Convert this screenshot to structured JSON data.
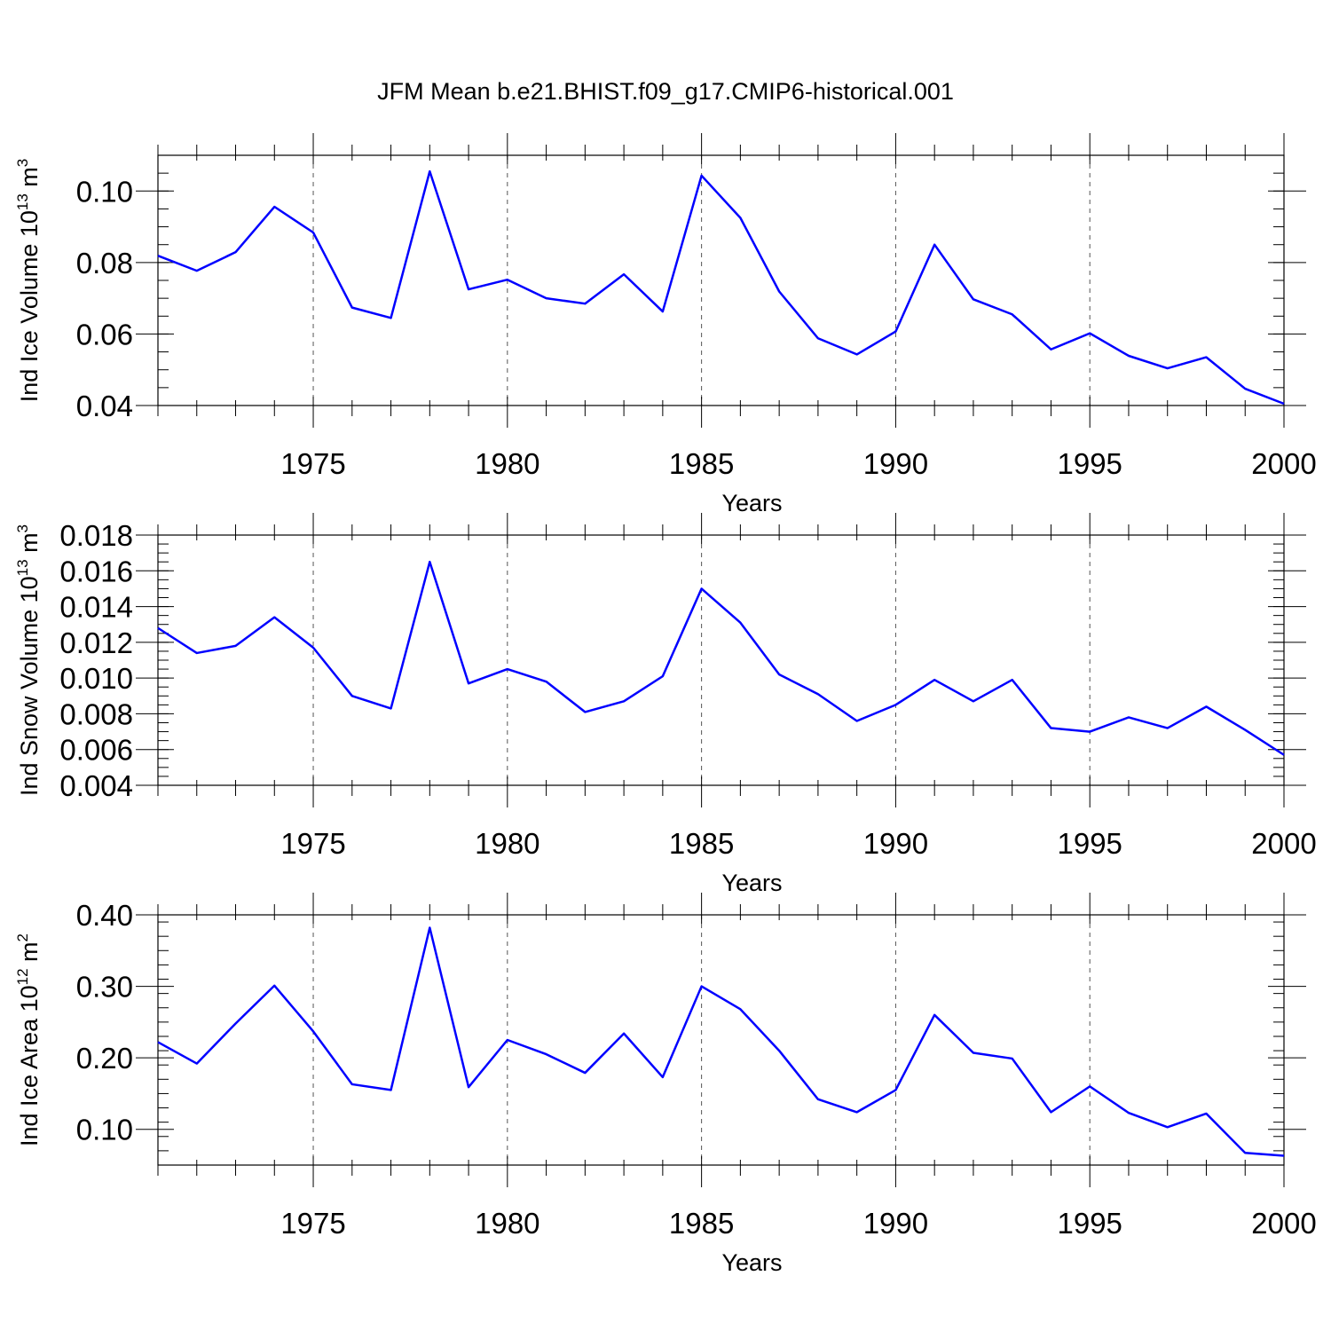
{
  "figure": {
    "title": "JFM Mean b.e21.BHIST.f09_g17.CMIP6-historical.001"
  },
  "style": {
    "line_color": "#0000ff",
    "axis_color": "#000000",
    "grid_color": "#555555",
    "background": "#ffffff"
  },
  "chart_data": [
    {
      "type": "line",
      "xlabel": "Years",
      "ylabel_parts": [
        "Ind Ice Volume 10",
        "13",
        " m",
        "3"
      ],
      "xlim": [
        1971,
        2000
      ],
      "ylim": [
        0.04,
        0.11
      ],
      "xticks": [
        1975,
        1980,
        1985,
        1990,
        1995,
        2000
      ],
      "xtick_labels": [
        "1975",
        "1980",
        "1985",
        "1990",
        "1995",
        "2000"
      ],
      "yticks": [
        0.04,
        0.06,
        0.08,
        0.1
      ],
      "ytick_labels": [
        "0.04",
        "0.06",
        "0.08",
        "0.10"
      ],
      "yminor_step": 0.005,
      "grid": "dashed vertical at major x ticks",
      "x": [
        1971,
        1972,
        1973,
        1974,
        1975,
        1976,
        1977,
        1978,
        1979,
        1980,
        1981,
        1982,
        1983,
        1984,
        1985,
        1986,
        1987,
        1988,
        1989,
        1990,
        1991,
        1992,
        1993,
        1994,
        1995,
        1996,
        1997,
        1998,
        1999,
        2000
      ],
      "series": [
        {
          "name": "Ind Ice Volume",
          "values": [
            0.0819,
            0.0777,
            0.0829,
            0.0956,
            0.0884,
            0.0674,
            0.0645,
            0.1055,
            0.0725,
            0.0752,
            0.07,
            0.0685,
            0.0767,
            0.0663,
            0.1043,
            0.0925,
            0.0719,
            0.0588,
            0.0543,
            0.0607,
            0.085,
            0.0697,
            0.0655,
            0.0557,
            0.0602,
            0.0539,
            0.0504,
            0.0535,
            0.0447,
            0.0405
          ]
        }
      ]
    },
    {
      "type": "line",
      "xlabel": "Years",
      "ylabel_parts": [
        "Ind Snow Volume 10",
        "13",
        " m",
        "3"
      ],
      "xlim": [
        1971,
        2000
      ],
      "ylim": [
        0.004,
        0.018
      ],
      "xticks": [
        1975,
        1980,
        1985,
        1990,
        1995,
        2000
      ],
      "xtick_labels": [
        "1975",
        "1980",
        "1985",
        "1990",
        "1995",
        "2000"
      ],
      "yticks": [
        0.004,
        0.006,
        0.008,
        0.01,
        0.012,
        0.014,
        0.016,
        0.018
      ],
      "ytick_labels": [
        "0.004",
        "0.006",
        "0.008",
        "0.010",
        "0.012",
        "0.014",
        "0.016",
        "0.018"
      ],
      "yminor_step": 0.0005,
      "grid": "dashed vertical at major x ticks",
      "x": [
        1971,
        1972,
        1973,
        1974,
        1975,
        1976,
        1977,
        1978,
        1979,
        1980,
        1981,
        1982,
        1983,
        1984,
        1985,
        1986,
        1987,
        1988,
        1989,
        1990,
        1991,
        1992,
        1993,
        1994,
        1995,
        1996,
        1997,
        1998,
        1999,
        2000
      ],
      "series": [
        {
          "name": "Ind Snow Volume",
          "values": [
            0.0128,
            0.0114,
            0.0118,
            0.0134,
            0.0117,
            0.009,
            0.0083,
            0.0165,
            0.0097,
            0.0105,
            0.0098,
            0.0081,
            0.0087,
            0.0101,
            0.015,
            0.0131,
            0.0102,
            0.0091,
            0.0076,
            0.0085,
            0.0099,
            0.0087,
            0.0099,
            0.0072,
            0.007,
            0.0078,
            0.0072,
            0.0084,
            0.0071,
            0.0057
          ]
        }
      ]
    },
    {
      "type": "line",
      "xlabel": "Years",
      "ylabel_parts": [
        "Ind Ice Area 10",
        "12",
        " m",
        "2"
      ],
      "xlim": [
        1971,
        2000
      ],
      "ylim": [
        0.05,
        0.4
      ],
      "xticks": [
        1975,
        1980,
        1985,
        1990,
        1995,
        2000
      ],
      "xtick_labels": [
        "1975",
        "1980",
        "1985",
        "1990",
        "1995",
        "2000"
      ],
      "yticks": [
        0.1,
        0.2,
        0.3,
        0.4
      ],
      "ytick_labels": [
        "0.10",
        "0.20",
        "0.30",
        "0.40"
      ],
      "yminor_step": 0.02,
      "grid": "dashed vertical at major x ticks",
      "x": [
        1971,
        1972,
        1973,
        1974,
        1975,
        1976,
        1977,
        1978,
        1979,
        1980,
        1981,
        1982,
        1983,
        1984,
        1985,
        1986,
        1987,
        1988,
        1989,
        1990,
        1991,
        1992,
        1993,
        1994,
        1995,
        1996,
        1997,
        1998,
        1999,
        2000
      ],
      "series": [
        {
          "name": "Ind Ice Area",
          "values": [
            0.222,
            0.192,
            0.248,
            0.301,
            0.237,
            0.163,
            0.155,
            0.382,
            0.159,
            0.225,
            0.205,
            0.179,
            0.234,
            0.173,
            0.3,
            0.268,
            0.21,
            0.142,
            0.124,
            0.155,
            0.26,
            0.207,
            0.199,
            0.124,
            0.16,
            0.123,
            0.103,
            0.122,
            0.067,
            0.063
          ]
        }
      ]
    }
  ]
}
